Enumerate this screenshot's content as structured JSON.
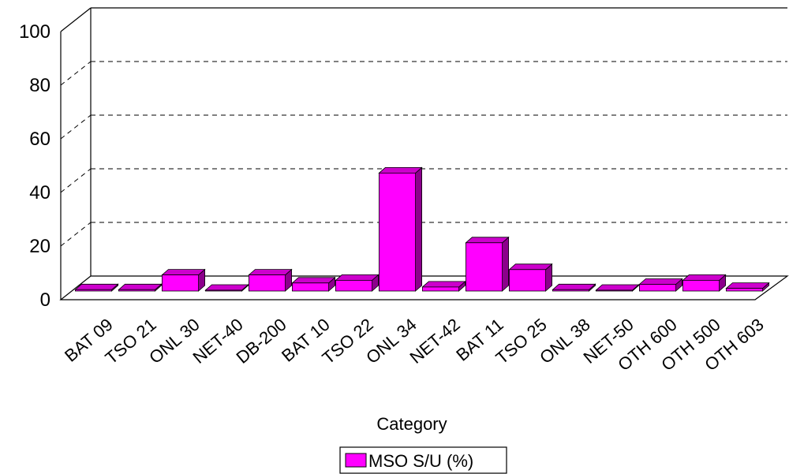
{
  "chart_data": {
    "type": "bar",
    "title": "",
    "xlabel": "Category",
    "ylabel": "",
    "ylim": [
      0,
      100
    ],
    "yticks": [
      "0",
      "20",
      "40",
      "60",
      "80",
      "100"
    ],
    "grid": "horizontal dashed",
    "legend_position": "bottom",
    "categories": [
      "BAT 09",
      "TSO 21",
      "ONL 30",
      "NET-40",
      "DB-200",
      "BAT 10",
      "TSO 22",
      "ONL 34",
      "NET-42",
      "BAT 11",
      "TSO 25",
      "ONL 38",
      "NET-50",
      "OTH 600",
      "OTH 500",
      "OTH 603"
    ],
    "series": [
      {
        "name": "MSO S/U (%)",
        "color": "#ff00ff",
        "values": [
          0.5,
          0.5,
          6,
          0.3,
          6,
          3,
          4,
          44,
          1.5,
          18,
          8,
          0.5,
          0.3,
          2.5,
          4,
          1
        ]
      }
    ]
  }
}
